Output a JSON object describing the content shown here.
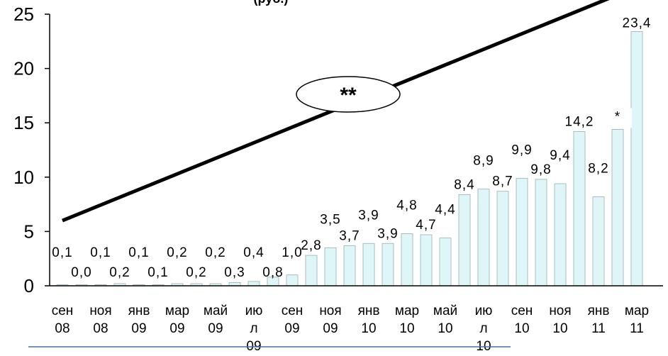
{
  "chart_data": {
    "type": "bar",
    "title": "(руб.)",
    "xlabel": "",
    "ylabel": "",
    "ylim": [
      0,
      25
    ],
    "yticks": [
      0,
      5,
      10,
      15,
      20,
      25
    ],
    "grid": false,
    "x_labels": [
      [
        "сен",
        "08"
      ],
      [
        "ноя",
        "08"
      ],
      [
        "янв",
        "09"
      ],
      [
        "мар",
        "09"
      ],
      [
        "май",
        "09"
      ],
      [
        "ию",
        "л",
        "09"
      ],
      [
        "сен",
        "09"
      ],
      [
        "ноя",
        "09"
      ],
      [
        "янв",
        "10"
      ],
      [
        "мар",
        "10"
      ],
      [
        "май",
        "10"
      ],
      [
        "ию",
        "л",
        "10"
      ],
      [
        "сен",
        "10"
      ],
      [
        "ноя",
        "10"
      ],
      [
        "янв",
        "11"
      ],
      [
        "мар",
        "11"
      ]
    ],
    "values": [
      0.1,
      0.0,
      0.1,
      0.2,
      0.1,
      0.1,
      0.2,
      0.2,
      0.2,
      0.3,
      0.4,
      0.8,
      1.0,
      2.8,
      3.5,
      3.7,
      3.9,
      3.9,
      4.8,
      4.7,
      4.4,
      8.4,
      8.9,
      8.7,
      9.9,
      9.8,
      9.4,
      14.2,
      8.2,
      14.4,
      23.4
    ],
    "value_labels": [
      "0,1",
      "0,0",
      "0,1",
      "0,2",
      "0,1",
      "0,1",
      "0,2",
      "0,2",
      "0,2",
      "0,3",
      "0,4",
      "0,8",
      "1,0",
      "2,8",
      "3,5",
      "3,7",
      "3,9",
      "3,9",
      "4,8",
      "4,7",
      "4,4",
      "8,4",
      "8,9",
      "8,7",
      "9,9",
      "9,8",
      "9,4",
      "14,2",
      "8,2",
      "*",
      "23,4"
    ],
    "trend_line": {
      "x": [
        0,
        30
      ],
      "y": [
        6.0,
        27.5
      ]
    },
    "annotation": "**",
    "colors": {
      "bar_fill": "#dff6f8",
      "bar_stroke": "#9aaeb2",
      "trend": "#000000",
      "bottom_rule": "#4a6fa5"
    }
  }
}
